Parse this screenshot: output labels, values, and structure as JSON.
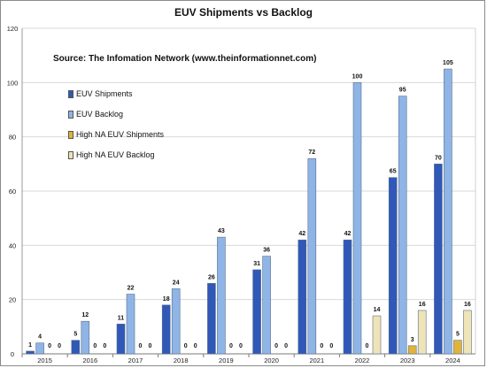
{
  "chart_data": {
    "type": "bar",
    "title": "EUV Shipments vs Backlog",
    "subtitle": "Source: The Infomation Network (www.theinformationnet.com)",
    "xlabel": "",
    "ylabel": "",
    "ylim": [
      0,
      120
    ],
    "yticks": [
      0,
      20,
      40,
      60,
      80,
      100,
      120
    ],
    "grid": true,
    "legend_position": "left",
    "categories": [
      "2015",
      "2016",
      "2017",
      "2018",
      "2019",
      "2020",
      "2021",
      "2022",
      "2023",
      "2024"
    ],
    "series": [
      {
        "name": "EUV Shipments",
        "color": "#2f58b8",
        "values": [
          1,
          5,
          11,
          18,
          26,
          31,
          42,
          42,
          65,
          70
        ]
      },
      {
        "name": "EUV Backlog",
        "color": "#8fb4e6",
        "values": [
          4,
          12,
          22,
          24,
          43,
          36,
          72,
          100,
          95,
          105
        ]
      },
      {
        "name": "High NA EUV Shipments",
        "color": "#e0b43a",
        "values": [
          0,
          0,
          0,
          0,
          0,
          0,
          0,
          0,
          3,
          5
        ]
      },
      {
        "name": "High NA EUV Backlog",
        "color": "#eee4b8",
        "values": [
          0,
          0,
          0,
          0,
          0,
          0,
          0,
          14,
          16,
          16
        ]
      }
    ]
  }
}
